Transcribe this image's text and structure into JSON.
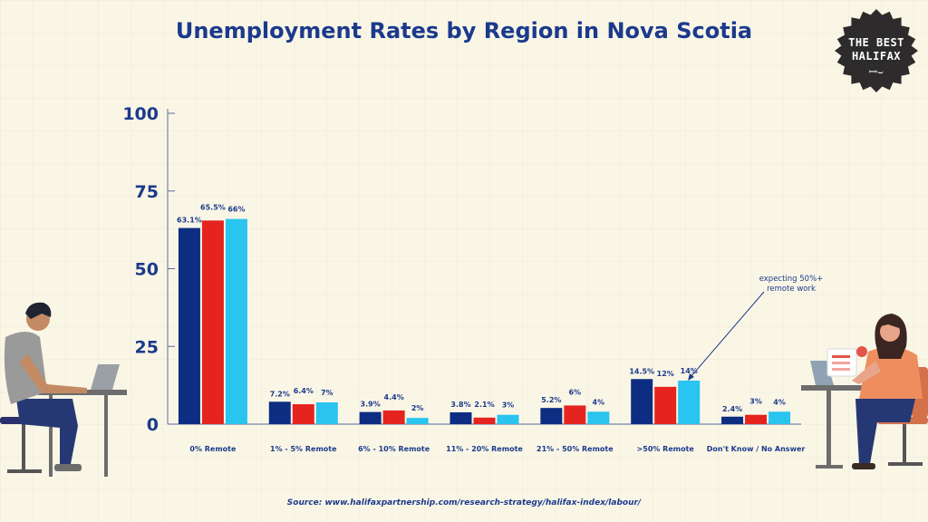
{
  "title": "Unemployment Rates by Region in Nova Scotia",
  "badge": {
    "line1": "THE BEST",
    "line2": "HALIFAX",
    "icon": "halifax-doodle-icon"
  },
  "source": "Source: www.halifaxpartnership.com/research-strategy/halifax-index/labour/",
  "annotation": {
    "line1": "expecting 50%+",
    "line2": "remote work"
  },
  "colors": {
    "series": [
      "#0d2d82",
      "#e52420",
      "#29c4ef"
    ],
    "title": "#1b3a8c",
    "background": "#faf6e6"
  },
  "illustrations": {
    "left": "man-working-at-laptop",
    "right": "woman-working-at-laptop"
  },
  "chart_data": {
    "type": "bar",
    "title": "Unemployment Rates by Region in Nova Scotia",
    "categories": [
      "0% Remote",
      "1% - 5% Remote",
      "6% - 10% Remote",
      "11% - 20% Remote",
      "21% - 50% Remote",
      ">50% Remote",
      "Don't Know / No Answer"
    ],
    "series": [
      {
        "values": [
          63.1,
          7.2,
          3.9,
          3.8,
          5.2,
          14.5,
          2.4
        ],
        "labels": [
          "63.1%",
          "7.2%",
          "3.9%",
          "3.8%",
          "5.2%",
          "14.5%",
          "2.4%"
        ]
      },
      {
        "values": [
          65.5,
          6.4,
          4.4,
          2.1,
          6,
          12,
          3
        ],
        "labels": [
          "65.5%",
          "6.4%",
          "4.4%",
          "2.1%",
          "6%",
          "12%",
          "3%"
        ]
      },
      {
        "values": [
          66,
          7,
          2,
          3,
          4,
          14,
          4
        ],
        "labels": [
          "66%",
          "7%",
          "2%",
          "3%",
          "4%",
          "14%",
          "4%"
        ]
      }
    ],
    "yticks": [
      0,
      25,
      50,
      75,
      100
    ],
    "ylim": [
      0,
      100
    ],
    "grid": false,
    "legend": "none"
  }
}
